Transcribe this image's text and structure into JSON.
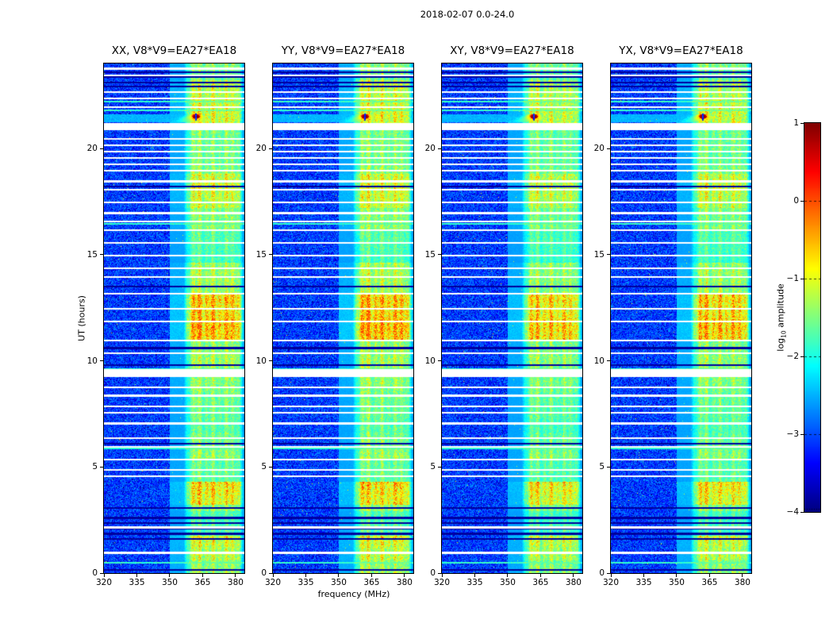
{
  "figure": {
    "title": "2018-02-07 0.0-24.0",
    "xlabel": "frequency (MHz)",
    "ylabel": "UT (hours)"
  },
  "panels": [
    {
      "title": "XX, V8*V9=EA27*EA18"
    },
    {
      "title": "YY, V8*V9=EA27*EA18"
    },
    {
      "title": "XY, V8*V9=EA27*EA18"
    },
    {
      "title": "YX, V8*V9=EA27*EA18"
    }
  ],
  "axes": {
    "x_ticks": [
      320,
      335,
      350,
      365,
      380
    ],
    "x_range": [
      320,
      384
    ],
    "y_ticks": [
      0,
      5,
      10,
      15,
      20
    ],
    "y_range": [
      0,
      24
    ]
  },
  "colorbar": {
    "label_prefix": "log",
    "label_sub": "10",
    "label_suffix": " amplitude",
    "ticks": [
      1,
      0,
      -1,
      -2,
      -3,
      -4
    ],
    "range": [
      -4,
      1
    ],
    "colormap": "jet"
  },
  "chart_data": {
    "type": "heatmap",
    "title": "2018-02-07 0.0-24.0",
    "xlabel": "frequency (MHz)",
    "ylabel": "UT (hours)",
    "panels": [
      "XX, V8*V9=EA27*EA18",
      "YY, V8*V9=EA27*EA18",
      "XY, V8*V9=EA27*EA18",
      "YX, V8*V9=EA27*EA18"
    ],
    "x_range_mhz": [
      320,
      384
    ],
    "y_range_hours": [
      0,
      24
    ],
    "x_ticks": [
      320,
      335,
      350,
      365,
      380
    ],
    "y_ticks": [
      0,
      5,
      10,
      15,
      20
    ],
    "value_scale": "log10 amplitude",
    "value_range": [
      -4,
      1
    ],
    "colormap": "jet",
    "background_log10_amplitude": -3.1,
    "emission_band_mhz": [
      357,
      383
    ],
    "band_stripes": [
      [
        360.8,
        0.75
      ],
      [
        363.6,
        0.9
      ],
      [
        366.9,
        0.62
      ],
      [
        369.8,
        0.85
      ],
      [
        372.8,
        0.55
      ],
      [
        375.8,
        0.8
      ],
      [
        378.6,
        0.68
      ],
      [
        381.2,
        0.45
      ]
    ],
    "band_intensity_segments": [
      [
        0,
        0.6,
        1.2
      ],
      [
        0.6,
        1.75,
        1.35
      ],
      [
        1.75,
        2.9,
        0.75
      ],
      [
        2.9,
        3.2,
        1.0
      ],
      [
        3.2,
        4.3,
        1.45
      ],
      [
        4.3,
        5.3,
        0.8
      ],
      [
        5.3,
        6.6,
        0.95
      ],
      [
        6.6,
        9.25,
        0.85
      ],
      [
        9.25,
        11.0,
        0.9
      ],
      [
        11.0,
        13.2,
        1.45
      ],
      [
        13.2,
        14.6,
        1.05
      ],
      [
        14.6,
        16.2,
        0.7
      ],
      [
        16.2,
        17.2,
        0.9
      ],
      [
        17.2,
        18.8,
        1.1
      ],
      [
        18.8,
        20.85,
        0.9
      ],
      [
        20.85,
        21.8,
        1.25
      ],
      [
        21.8,
        23.2,
        1.2
      ],
      [
        23.2,
        24.01,
        0.95
      ]
    ],
    "data_gap_intervals_hours": [
      [
        9.25,
        9.6
      ],
      [
        20.85,
        21.2
      ]
    ],
    "white_line_hours": [
      0.95,
      2.15,
      4.55,
      4.85,
      5.35,
      5.95,
      6.35,
      7.05,
      7.55,
      7.85,
      8.35,
      8.75,
      10.35,
      10.95,
      11.85,
      12.45,
      13.15,
      13.95,
      14.35,
      14.95,
      15.55,
      16.15,
      16.55,
      16.95,
      17.45,
      18.05,
      18.45,
      18.95,
      19.25,
      19.55,
      19.85,
      20.15,
      20.45,
      21.95,
      22.35,
      22.65,
      23.45,
      23.75
    ],
    "dark_line_hours": [
      0.15,
      1.6,
      1.85,
      2.1,
      2.35,
      2.6,
      3.05,
      6.1,
      9.8,
      10.6,
      13.5,
      18.2,
      22.9,
      23.1,
      23.35,
      23.6
    ],
    "cyan_line_hours": [
      0.5,
      5.88,
      9.62,
      16.45,
      21.78,
      22.2
    ],
    "burst": {
      "time_hours": 21.45,
      "frequency_mhz": 362,
      "peak_log10_amplitude": 1
    },
    "polarization_gains": [
      1.0,
      1.02,
      0.93,
      0.96
    ]
  }
}
